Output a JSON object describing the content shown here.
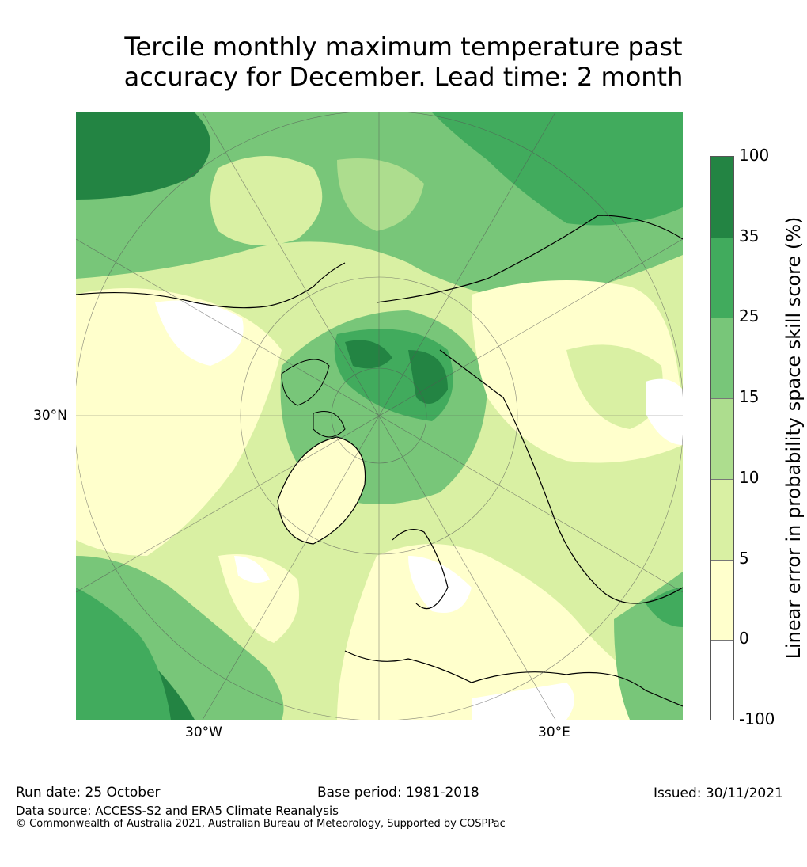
{
  "title_line1": "Tercile monthly maximum temperature past",
  "title_line2": "accuracy for December. Lead time: 2 month",
  "map": {
    "lat_label": "30°N",
    "lon_label_west": "30°W",
    "lon_label_east": "30°E",
    "colors": {
      "white": "#ffffff",
      "c0": "#ffffcc",
      "c5": "#d9f0a3",
      "c10": "#addd8e",
      "c15": "#78c679",
      "c25": "#41ab5d",
      "c35": "#238443"
    }
  },
  "colorbar": {
    "title": "Linear error in probability space skill score (%)",
    "labels": [
      "100",
      "35",
      "25",
      "15",
      "10",
      "5",
      "0",
      "-100"
    ],
    "colors": [
      "#238443",
      "#41ab5d",
      "#78c679",
      "#addd8e",
      "#d9f0a3",
      "#ffffcc",
      "#ffffff"
    ]
  },
  "footer": {
    "run_date": "Run date: 25 October",
    "base_period": "Base period: 1981-2018",
    "issued": "Issued: 30/11/2021",
    "data_source": "Data source: ACCESS-S2 and ERA5 Climate Reanalysis",
    "copyright": "© Commonwealth of Australia 2021, Australian Bureau of Meteorology, Supported by COSPPac"
  }
}
